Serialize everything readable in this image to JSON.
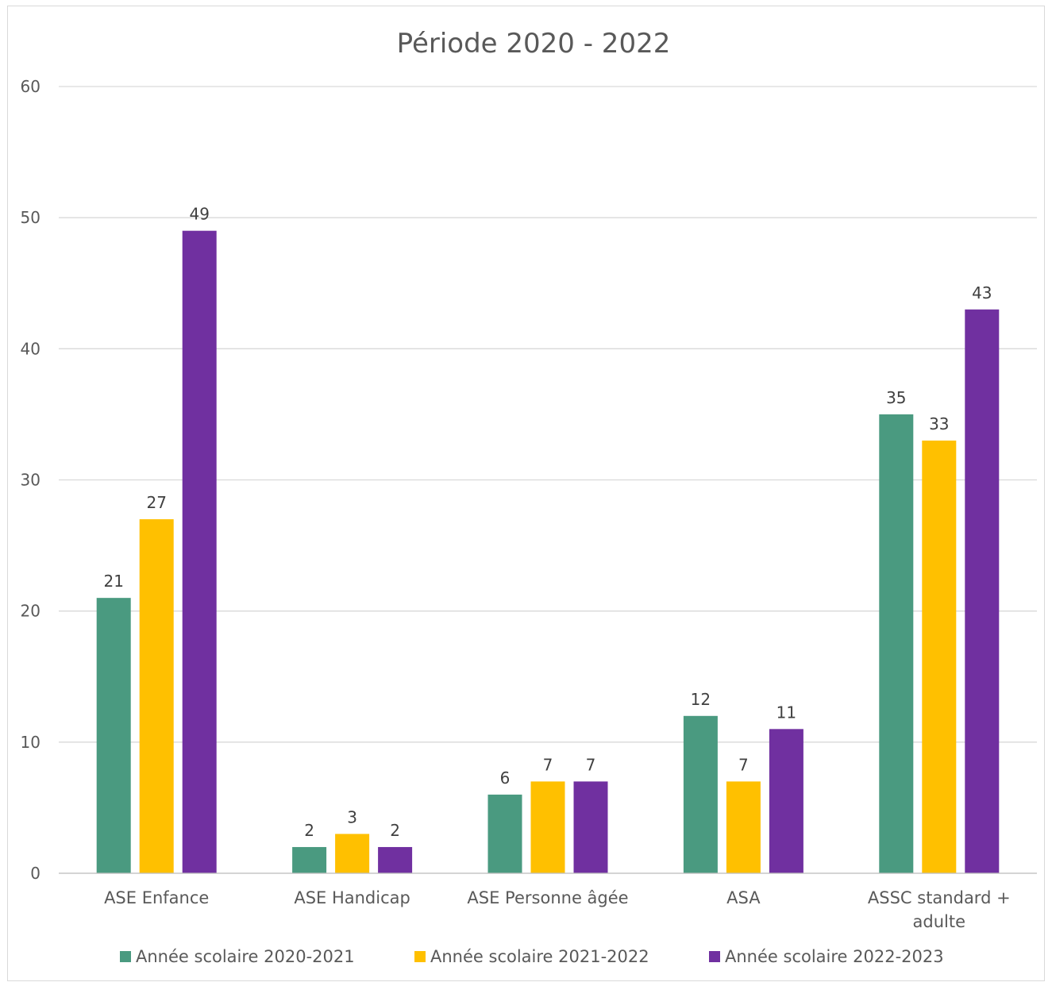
{
  "chart_data": {
    "type": "bar",
    "title": "Période 2020 - 2022",
    "categories": [
      [
        "ASE Enfance"
      ],
      [
        "ASE Handicap"
      ],
      [
        "ASE Personne âgée"
      ],
      [
        "ASA"
      ],
      [
        "ASSC standard +",
        "adulte"
      ]
    ],
    "series": [
      {
        "name": "Année scolaire 2020-2021",
        "color": "#4a9a80",
        "values": [
          21,
          2,
          6,
          12,
          35
        ]
      },
      {
        "name": "Année scolaire 2021-2022",
        "color": "#ffc000",
        "values": [
          27,
          3,
          7,
          7,
          33
        ]
      },
      {
        "name": "Année scolaire 2022-2023",
        "color": "#7030a0",
        "values": [
          49,
          2,
          7,
          11,
          43
        ]
      }
    ],
    "ylim": [
      0,
      60
    ],
    "yticks": [
      0,
      10,
      20,
      30,
      40,
      50,
      60
    ],
    "grid": true,
    "legend": "bottom",
    "data_labels": true
  }
}
